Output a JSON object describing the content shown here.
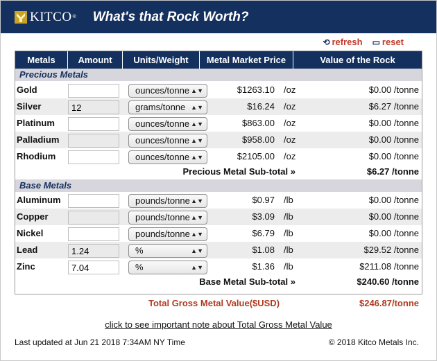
{
  "header": {
    "logo": "KITCO",
    "logo_mark": "®",
    "title": "What's that Rock Worth?"
  },
  "controls": {
    "refresh_label": "refresh",
    "reset_label": "reset"
  },
  "columns": [
    "Metals",
    "Amount",
    "Units/Weight",
    "Metal Market Price",
    "Value of the Rock"
  ],
  "precious": {
    "header": "Precious Metals",
    "rows": [
      {
        "metal": "Gold",
        "amount": "",
        "units": "ounces/tonne",
        "price": "$1263.10",
        "unit": "/oz",
        "value": "$0.00 /tonne"
      },
      {
        "metal": "Silver",
        "amount": "12",
        "units": "grams/tonne",
        "price": "$16.24",
        "unit": "/oz",
        "value": "$6.27 /tonne"
      },
      {
        "metal": "Platinum",
        "amount": "",
        "units": "ounces/tonne",
        "price": "$863.00",
        "unit": "/oz",
        "value": "$0.00 /tonne"
      },
      {
        "metal": "Palladium",
        "amount": "",
        "units": "ounces/tonne",
        "price": "$958.00",
        "unit": "/oz",
        "value": "$0.00 /tonne"
      },
      {
        "metal": "Rhodium",
        "amount": "",
        "units": "ounces/tonne",
        "price": "$2105.00",
        "unit": "/oz",
        "value": "$0.00 /tonne"
      }
    ],
    "subtotal_label": "Precious Metal Sub-total »",
    "subtotal_value": "$6.27 /tonne"
  },
  "base": {
    "header": "Base Metals",
    "rows": [
      {
        "metal": "Aluminum",
        "amount": "",
        "units": "pounds/tonne",
        "price": "$0.97",
        "unit": "/lb",
        "value": "$0.00 /tonne"
      },
      {
        "metal": "Copper",
        "amount": "",
        "units": "pounds/tonne",
        "price": "$3.09",
        "unit": "/lb",
        "value": "$0.00 /tonne"
      },
      {
        "metal": "Nickel",
        "amount": "",
        "units": "pounds/tonne",
        "price": "$6.79",
        "unit": "/lb",
        "value": "$0.00 /tonne"
      },
      {
        "metal": "Lead",
        "amount": "1.24",
        "units": "%",
        "price": "$1.08",
        "unit": "/lb",
        "value": "$29.52 /tonne"
      },
      {
        "metal": "Zinc",
        "amount": "7.04",
        "units": "%",
        "price": "$1.36",
        "unit": "/lb",
        "value": "$211.08 /tonne"
      }
    ],
    "subtotal_label": "Base Metal Sub-total »",
    "subtotal_value": "$240.60 /tonne"
  },
  "gross": {
    "label": "Total Gross Metal Value($USD)",
    "value": "$246.87/tonne"
  },
  "note_link": "click to see important note about Total Gross Metal Value",
  "footer": {
    "updated": "Last updated at Jun 21 2018 7:34AM NY Time",
    "copyright": "© 2018 Kitco Metals Inc."
  },
  "colors": {
    "navy": "#14305e",
    "accent_red": "#c0392b",
    "gross_red": "#b03a1e",
    "row_alt": "#ececec"
  },
  "icons": {
    "logo": "kitco-gold-logo",
    "refresh": "refresh-icon",
    "reset": "reset-icon",
    "select_arrow": "updown-arrow-icon"
  }
}
